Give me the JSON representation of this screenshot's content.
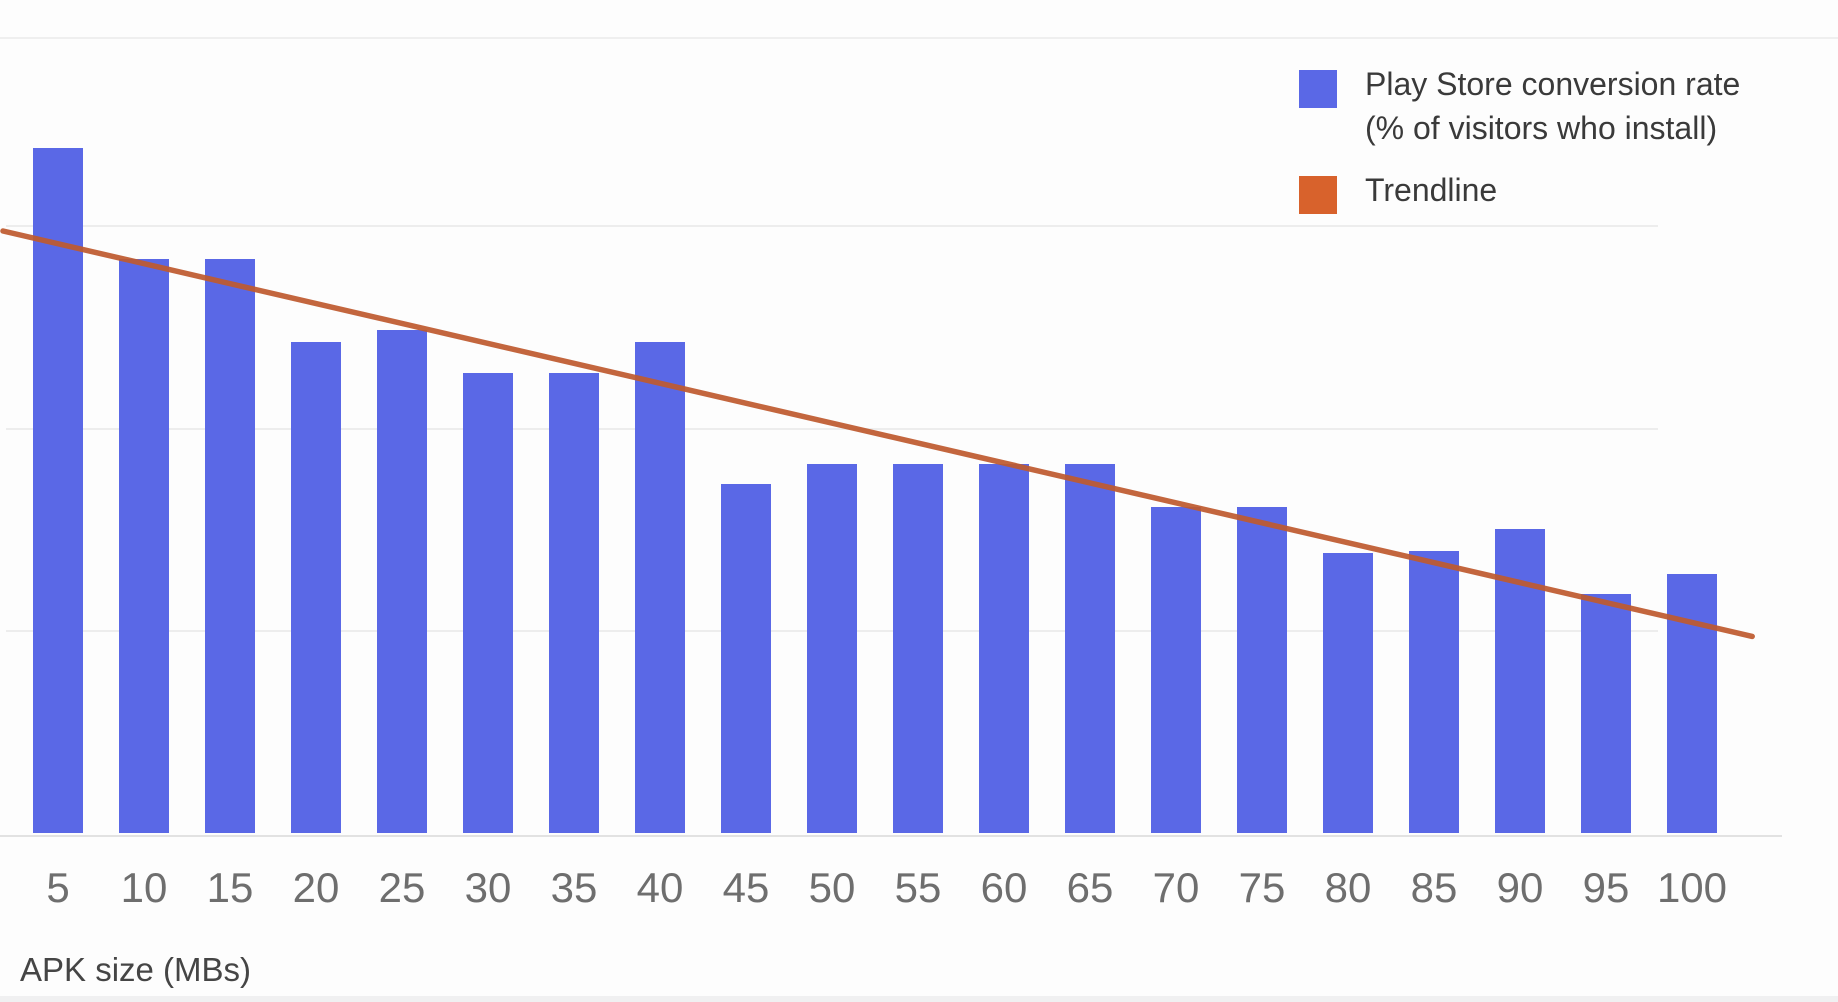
{
  "colors": {
    "canvas_bg": "#fdfdfd",
    "bar": "#5a68e6",
    "trendline_stroke": "#bf5b30",
    "legend_trendline_swatch": "#d8622c",
    "gridline": "#ededed",
    "axis_line": "#e2e2e2",
    "tick_text": "#6e6e6e",
    "axis_title_text": "#454545",
    "legend_text": "#3a3a3a"
  },
  "legend": {
    "items": [
      {
        "name": "conversion-rate",
        "color": "#5a68e6",
        "lines": [
          "Play Store conversion rate",
          "(% of visitors who install)"
        ]
      },
      {
        "name": "trendline",
        "color": "#d8622c",
        "lines": [
          "Trendline"
        ]
      }
    ]
  },
  "chart_data": {
    "type": "bar",
    "title": "",
    "xlabel": "APK size (MBs)",
    "ylabel": "",
    "series_name": "Play Store conversion rate (% of visitors who install)",
    "categories": [
      5,
      10,
      15,
      20,
      25,
      30,
      35,
      40,
      45,
      50,
      55,
      60,
      65,
      70,
      75,
      80,
      85,
      90,
      95,
      100
    ],
    "values": [
      3.38,
      2.83,
      2.83,
      2.42,
      2.48,
      2.27,
      2.27,
      2.42,
      1.72,
      1.82,
      1.82,
      1.82,
      1.82,
      1.61,
      1.61,
      1.38,
      1.39,
      1.5,
      1.18,
      1.28
    ],
    "y_axis": {
      "labels_visible": false,
      "gridline_values": [
        1,
        2,
        3
      ]
    },
    "ylim": [
      0,
      3.9
    ],
    "grid": true,
    "legend_position": "top-right",
    "trendline": {
      "x_start_mb": 1.8,
      "value_start": 2.97,
      "x_end_mb": 103.5,
      "value_end": 0.97
    }
  }
}
